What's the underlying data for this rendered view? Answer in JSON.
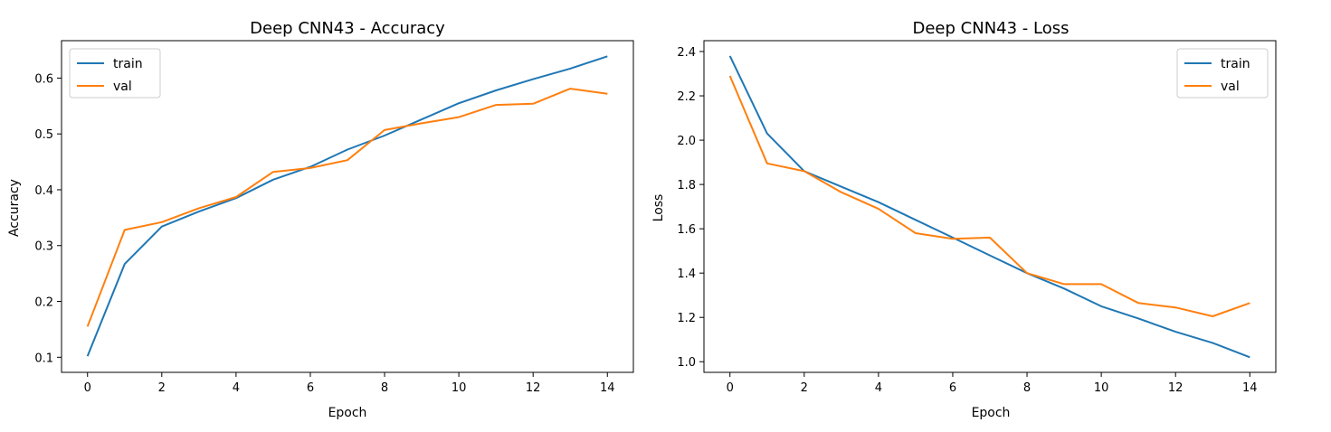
{
  "colors": {
    "train": "#1f77b4",
    "val": "#ff7f0e"
  },
  "chart_data": [
    {
      "type": "line",
      "title": "Deep CNN43 - Accuracy",
      "xlabel": "Epoch",
      "ylabel": "Accuracy",
      "x": [
        0,
        1,
        2,
        3,
        4,
        5,
        6,
        7,
        8,
        9,
        10,
        11,
        12,
        13,
        14
      ],
      "xlim": [
        -0.7,
        14.7
      ],
      "ylim": [
        0.073,
        0.667
      ],
      "xticks": [
        0,
        2,
        4,
        6,
        8,
        10,
        12,
        14
      ],
      "yticks": [
        0.1,
        0.2,
        0.3,
        0.4,
        0.5,
        0.6
      ],
      "legend": "upper-left",
      "grid": false,
      "series": [
        {
          "name": "train",
          "values": [
            0.102,
            0.267,
            0.334,
            0.361,
            0.385,
            0.418,
            0.441,
            0.472,
            0.497,
            0.526,
            0.555,
            0.578,
            0.598,
            0.617,
            0.639
          ]
        },
        {
          "name": "val",
          "values": [
            0.155,
            0.328,
            0.342,
            0.367,
            0.387,
            0.432,
            0.439,
            0.453,
            0.507,
            0.519,
            0.53,
            0.552,
            0.554,
            0.581,
            0.572
          ]
        }
      ]
    },
    {
      "type": "line",
      "title": "Deep CNN43 - Loss",
      "xlabel": "Epoch",
      "ylabel": "Loss",
      "x": [
        0,
        1,
        2,
        3,
        4,
        5,
        6,
        7,
        8,
        9,
        10,
        11,
        12,
        13,
        14
      ],
      "xlim": [
        -0.7,
        14.7
      ],
      "ylim": [
        0.952,
        2.449
      ],
      "xticks": [
        0,
        2,
        4,
        6,
        8,
        10,
        12,
        14
      ],
      "yticks": [
        1.0,
        1.2,
        1.4,
        1.6,
        1.8,
        2.0,
        2.2,
        2.4
      ],
      "legend": "upper-right",
      "grid": false,
      "series": [
        {
          "name": "train",
          "values": [
            2.38,
            2.03,
            1.86,
            1.79,
            1.72,
            1.64,
            1.56,
            1.48,
            1.4,
            1.33,
            1.25,
            1.195,
            1.135,
            1.085,
            1.02
          ]
        },
        {
          "name": "val",
          "values": [
            2.29,
            1.895,
            1.86,
            1.765,
            1.69,
            1.58,
            1.555,
            1.56,
            1.4,
            1.35,
            1.35,
            1.265,
            1.245,
            1.205,
            1.265
          ]
        }
      ]
    }
  ]
}
